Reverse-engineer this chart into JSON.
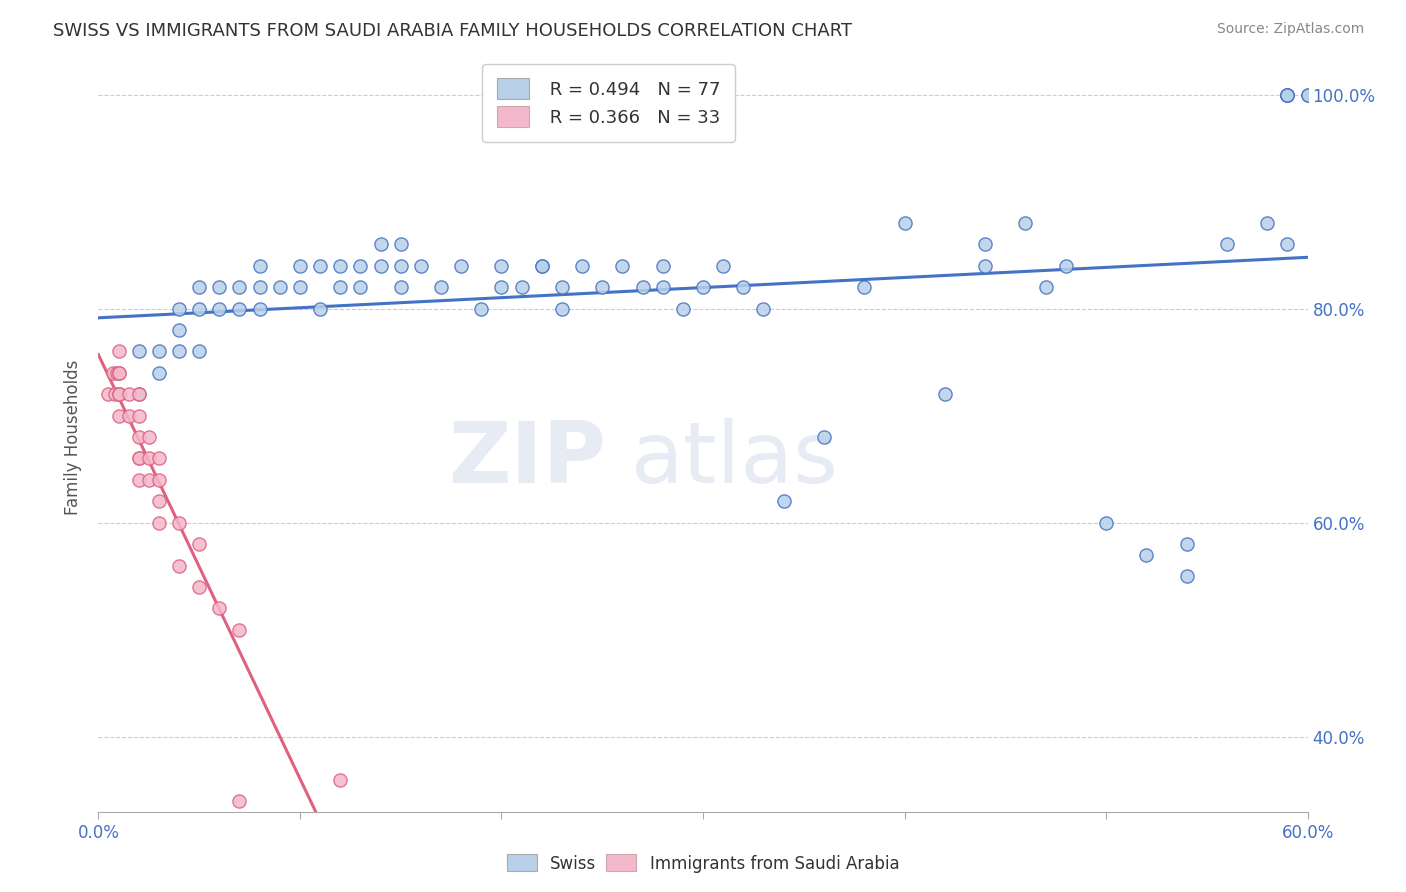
{
  "title": "SWISS VS IMMIGRANTS FROM SAUDI ARABIA FAMILY HOUSEHOLDS CORRELATION CHART",
  "source": "Source: ZipAtlas.com",
  "xlabel": "",
  "ylabel": "Family Households",
  "xlim": [
    0.0,
    0.6
  ],
  "ylim": [
    0.33,
    1.03
  ],
  "xticks": [
    0.0,
    0.1,
    0.2,
    0.3,
    0.4,
    0.5,
    0.6
  ],
  "xtick_labels": [
    "0.0%",
    "",
    "",
    "",
    "",
    "",
    "60.0%"
  ],
  "ytick_labels": [
    "40.0%",
    "60.0%",
    "80.0%",
    "100.0%"
  ],
  "yticks": [
    0.4,
    0.6,
    0.8,
    1.0
  ],
  "legend_r1": "R = 0.494",
  "legend_n1": "N = 77",
  "legend_r2": "R = 0.366",
  "legend_n2": "N = 33",
  "swiss_color": "#b8d0e8",
  "immigrants_color": "#f4b8cc",
  "swiss_line_color": "#4472c4",
  "immigrants_line_color": "#e06080",
  "watermark_zip": "ZIP",
  "watermark_atlas": "atlas",
  "swiss_x": [
    0.01,
    0.02,
    0.02,
    0.03,
    0.03,
    0.04,
    0.04,
    0.04,
    0.05,
    0.05,
    0.05,
    0.06,
    0.06,
    0.07,
    0.07,
    0.08,
    0.08,
    0.08,
    0.09,
    0.1,
    0.1,
    0.11,
    0.11,
    0.12,
    0.12,
    0.13,
    0.13,
    0.14,
    0.14,
    0.15,
    0.15,
    0.15,
    0.16,
    0.17,
    0.18,
    0.19,
    0.2,
    0.2,
    0.21,
    0.22,
    0.22,
    0.23,
    0.23,
    0.24,
    0.25,
    0.26,
    0.27,
    0.28,
    0.28,
    0.29,
    0.3,
    0.31,
    0.32,
    0.33,
    0.34,
    0.36,
    0.38,
    0.4,
    0.42,
    0.44,
    0.44,
    0.46,
    0.47,
    0.48,
    0.5,
    0.52,
    0.54,
    0.54,
    0.56,
    0.58,
    0.59,
    0.59,
    0.59,
    0.59,
    0.59,
    0.6,
    0.6
  ],
  "swiss_y": [
    0.72,
    0.72,
    0.76,
    0.76,
    0.74,
    0.8,
    0.78,
    0.76,
    0.8,
    0.82,
    0.76,
    0.8,
    0.82,
    0.82,
    0.8,
    0.84,
    0.82,
    0.8,
    0.82,
    0.82,
    0.84,
    0.8,
    0.84,
    0.82,
    0.84,
    0.84,
    0.82,
    0.86,
    0.84,
    0.82,
    0.84,
    0.86,
    0.84,
    0.82,
    0.84,
    0.8,
    0.82,
    0.84,
    0.82,
    0.84,
    0.84,
    0.82,
    0.8,
    0.84,
    0.82,
    0.84,
    0.82,
    0.84,
    0.82,
    0.8,
    0.82,
    0.84,
    0.82,
    0.8,
    0.62,
    0.68,
    0.82,
    0.88,
    0.72,
    0.86,
    0.84,
    0.88,
    0.82,
    0.84,
    0.6,
    0.57,
    0.58,
    0.55,
    0.86,
    0.88,
    1.0,
    1.0,
    1.0,
    1.0,
    0.86,
    1.0,
    1.0
  ],
  "immigrants_x": [
    0.005,
    0.007,
    0.008,
    0.009,
    0.01,
    0.01,
    0.01,
    0.01,
    0.01,
    0.01,
    0.015,
    0.015,
    0.02,
    0.02,
    0.02,
    0.02,
    0.02,
    0.02,
    0.025,
    0.025,
    0.025,
    0.03,
    0.03,
    0.03,
    0.03,
    0.04,
    0.04,
    0.05,
    0.05,
    0.06,
    0.07,
    0.07,
    0.12
  ],
  "immigrants_y": [
    0.72,
    0.74,
    0.72,
    0.74,
    0.76,
    0.74,
    0.72,
    0.7,
    0.72,
    0.74,
    0.72,
    0.7,
    0.72,
    0.7,
    0.68,
    0.66,
    0.64,
    0.66,
    0.68,
    0.66,
    0.64,
    0.66,
    0.64,
    0.62,
    0.6,
    0.6,
    0.56,
    0.58,
    0.54,
    0.52,
    0.5,
    0.34,
    0.36
  ]
}
